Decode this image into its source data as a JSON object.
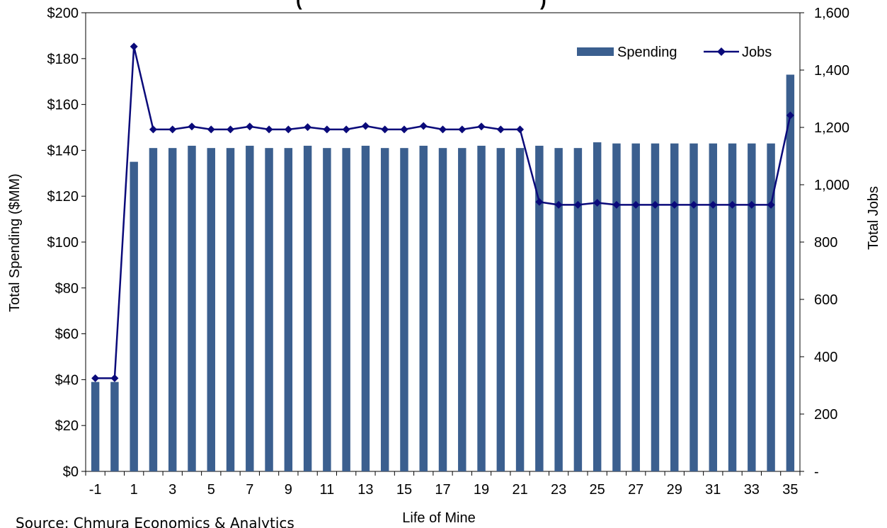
{
  "chart_data": {
    "type": "bar+line",
    "title": "(",
    "title_right": ")",
    "xlabel": "Life of Mine",
    "ylabel_left": "Total Spending ($MM)",
    "ylabel_right": "Total Jobs",
    "source": "Source: Chmura Economics & Analytics",
    "ylim_left": [
      0,
      200
    ],
    "ylim_right": [
      0,
      1600
    ],
    "left_ticks": [
      "$0",
      "$20",
      "$40",
      "$60",
      "$80",
      "$100",
      "$120",
      "$140",
      "$160",
      "$180",
      "$200"
    ],
    "right_ticks": [
      "-",
      "200",
      "400",
      "600",
      "800",
      "1,000",
      "1,200",
      "1,400",
      "1,600"
    ],
    "x_tick_labels": [
      "-1",
      "1",
      "3",
      "5",
      "7",
      "9",
      "11",
      "13",
      "15",
      "17",
      "19",
      "21",
      "23",
      "25",
      "27",
      "29",
      "31",
      "33",
      "35"
    ],
    "categories": [
      "-1",
      "0",
      "1",
      "2",
      "3",
      "4",
      "5",
      "6",
      "7",
      "8",
      "9",
      "10",
      "11",
      "12",
      "13",
      "14",
      "15",
      "16",
      "17",
      "18",
      "19",
      "20",
      "21",
      "22",
      "23",
      "24",
      "25",
      "26",
      "27",
      "28",
      "29",
      "30",
      "31",
      "32",
      "33",
      "34",
      "35"
    ],
    "legend_position": "top-right",
    "series": [
      {
        "name": "Spending",
        "type": "bar",
        "axis": "left",
        "color": "#3B5F8F",
        "values": [
          39,
          39,
          135,
          141,
          141,
          142,
          141,
          141,
          142,
          141,
          141,
          142,
          141,
          141,
          142,
          141,
          141,
          142,
          141,
          141,
          142,
          141,
          141,
          142,
          141,
          141,
          143.5,
          143,
          143,
          143,
          143,
          143,
          143,
          143,
          143,
          143,
          173
        ]
      },
      {
        "name": "Jobs",
        "type": "line",
        "axis": "right",
        "color": "#0A0A7A",
        "values": [
          325,
          325,
          1482,
          1193,
          1193,
          1203,
          1193,
          1193,
          1203,
          1193,
          1193,
          1201,
          1193,
          1193,
          1205,
          1193,
          1193,
          1205,
          1193,
          1193,
          1203,
          1193,
          1193,
          940,
          930,
          930,
          937,
          930,
          930,
          930,
          930,
          930,
          930,
          930,
          930,
          930,
          1242
        ]
      }
    ]
  }
}
